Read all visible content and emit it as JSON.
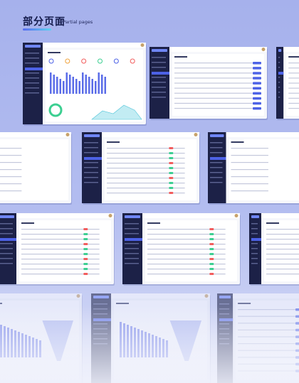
{
  "header": {
    "title": "部分页面",
    "subtitle": "/Partial pages"
  }
}
